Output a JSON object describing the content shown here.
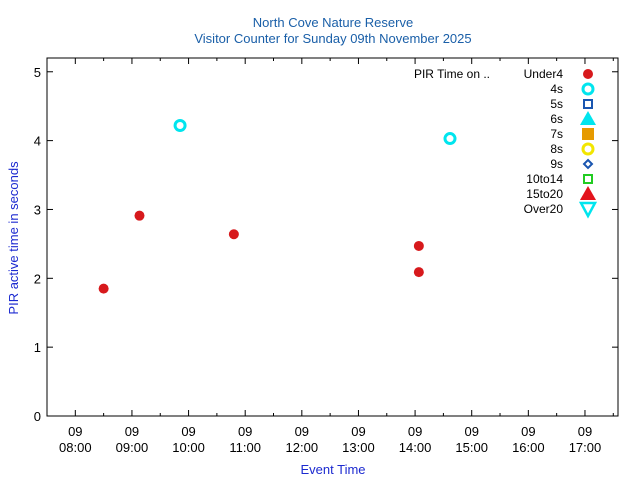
{
  "chart_data": {
    "type": "scatter",
    "title": "North Cove Nature Reserve",
    "subtitle": "Visitor Counter for Sunday 09th November 2025",
    "xlabel": "Event Time",
    "ylabel": "PIR active time in seconds",
    "ylim": [
      0,
      5.2
    ],
    "xlim": [
      "07:30",
      "17:35"
    ],
    "y_ticks": [
      "0",
      "1",
      "2",
      "3",
      "4",
      "5"
    ],
    "x_ticks": [
      {
        "day": "09",
        "time": "08:00"
      },
      {
        "day": "09",
        "time": "09:00"
      },
      {
        "day": "09",
        "time": "10:00"
      },
      {
        "day": "09",
        "time": "11:00"
      },
      {
        "day": "09",
        "time": "12:00"
      },
      {
        "day": "09",
        "time": "13:00"
      },
      {
        "day": "09",
        "time": "14:00"
      },
      {
        "day": "09",
        "time": "15:00"
      },
      {
        "day": "09",
        "time": "16:00"
      },
      {
        "day": "09",
        "time": "17:00"
      }
    ],
    "legend_title": "PIR Time on ..",
    "legend_position": "top-right",
    "series": [
      {
        "name": "Under4",
        "marker": "circle-filled",
        "color": "#d7191c",
        "points": [
          {
            "x": "08:30",
            "y": 1.85
          },
          {
            "x": "09:08",
            "y": 2.91
          },
          {
            "x": "10:48",
            "y": 2.64
          },
          {
            "x": "14:04",
            "y": 2.47
          },
          {
            "x": "14:04",
            "y": 2.09
          }
        ]
      },
      {
        "name": "4s",
        "marker": "circle-open",
        "color": "#00e5ee",
        "points": [
          {
            "x": "09:51",
            "y": 4.22
          },
          {
            "x": "14:37",
            "y": 4.03
          }
        ]
      },
      {
        "name": "5s",
        "marker": "square-open",
        "color": "#1a56b0",
        "points": []
      },
      {
        "name": "6s",
        "marker": "triangle-up-filled",
        "color": "#00e5ee",
        "points": []
      },
      {
        "name": "7s",
        "marker": "square-filled",
        "color": "#e69a00",
        "points": []
      },
      {
        "name": "8s",
        "marker": "circle-open",
        "color": "#f2e600",
        "points": []
      },
      {
        "name": "9s",
        "marker": "diamond-open",
        "color": "#1a56b0",
        "points": []
      },
      {
        "name": "10to14",
        "marker": "square-open",
        "color": "#22cc22",
        "points": []
      },
      {
        "name": "15to20",
        "marker": "triangle-up-filled",
        "color": "#e3141c",
        "points": []
      },
      {
        "name": "Over20",
        "marker": "triangle-down-open",
        "color": "#00e5ee",
        "points": []
      }
    ]
  }
}
